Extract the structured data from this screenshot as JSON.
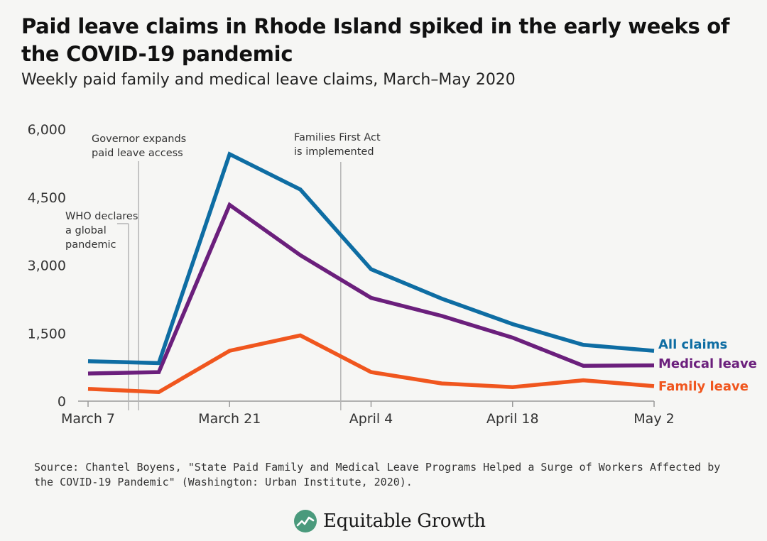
{
  "title": "Paid leave claims in Rhode Island spiked in the early weeks of the COVID-19 pandemic",
  "subtitle": "Weekly paid family and medical leave claims, March–May 2020",
  "source": "Source: Chantel Boyens, \"State Paid Family and Medical Leave Programs Helped a Surge of Workers Affected by the COVID-19 Pandemic\" (Washington: Urban Institute, 2020).",
  "brand": {
    "name": "Equitable Growth",
    "icon": "equitable-growth-logo-icon"
  },
  "colors": {
    "all": "#0e6da3",
    "medical": "#6b1f7c",
    "family": "#f0561e",
    "axis": "#9a9a9a",
    "tick_text": "#333333"
  },
  "chart_data": {
    "type": "line",
    "x": [
      "2020-03-07",
      "2020-03-14",
      "2020-03-21",
      "2020-03-28",
      "2020-04-04",
      "2020-04-11",
      "2020-04-18",
      "2020-04-25",
      "2020-05-02"
    ],
    "x_ticks": [
      "March 7",
      "March 21",
      "April 4",
      "April 18",
      "May 2"
    ],
    "y_ticks": [
      "6,000",
      "4,500",
      "3,000",
      "1,500",
      "0"
    ],
    "ylim": [
      0,
      6000
    ],
    "series": [
      {
        "name": "All claims",
        "key": "all",
        "values": [
          880,
          840,
          5450,
          4670,
          2910,
          2260,
          1700,
          1240,
          1110
        ]
      },
      {
        "name": "Medical leave",
        "key": "medical",
        "values": [
          610,
          640,
          4330,
          3220,
          2280,
          1880,
          1400,
          780,
          790
        ]
      },
      {
        "name": "Family leave",
        "key": "family",
        "values": [
          270,
          200,
          1110,
          1450,
          640,
          390,
          310,
          460,
          330
        ]
      }
    ],
    "annotations": [
      {
        "x": "2020-03-11",
        "lines": [
          "WHO declares",
          "a global",
          "pandemic"
        ]
      },
      {
        "x": "2020-03-12",
        "lines": [
          "Governor expands",
          "paid leave access"
        ]
      },
      {
        "x": "2020-04-01",
        "lines": [
          "Families First Act",
          "is implemented"
        ]
      }
    ],
    "legend": "right of line ends",
    "grid": false
  }
}
